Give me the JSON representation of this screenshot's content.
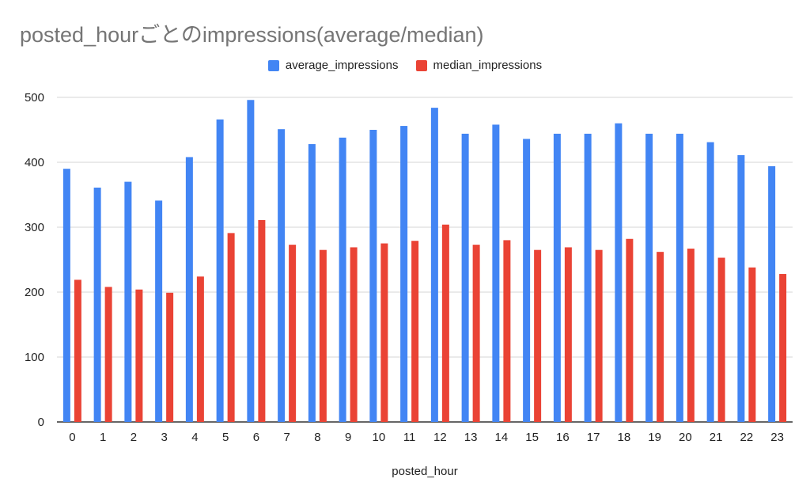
{
  "chart_data": {
    "type": "bar",
    "title": "posted_hourごとのimpressions(average/median)",
    "xlabel": "posted_hour",
    "ylabel": "",
    "ylim": [
      0,
      500
    ],
    "yticks": [
      0,
      100,
      200,
      300,
      400,
      500
    ],
    "categories": [
      "0",
      "1",
      "2",
      "3",
      "4",
      "5",
      "6",
      "7",
      "8",
      "9",
      "10",
      "11",
      "12",
      "13",
      "14",
      "15",
      "16",
      "17",
      "18",
      "19",
      "20",
      "21",
      "22",
      "23"
    ],
    "series": [
      {
        "name": "average_impressions",
        "color": "#4285f4",
        "values": [
          390,
          361,
          370,
          341,
          408,
          466,
          496,
          451,
          428,
          438,
          450,
          456,
          484,
          444,
          458,
          436,
          444,
          444,
          460,
          444,
          444,
          431,
          411,
          394
        ]
      },
      {
        "name": "median_impressions",
        "color": "#ea4335",
        "values": [
          219,
          208,
          204,
          199,
          224,
          291,
          311,
          273,
          265,
          269,
          275,
          279,
          304,
          273,
          280,
          265,
          269,
          265,
          282,
          262,
          267,
          253,
          238,
          228
        ]
      }
    ],
    "legend_position": "top-center",
    "grid": true
  }
}
